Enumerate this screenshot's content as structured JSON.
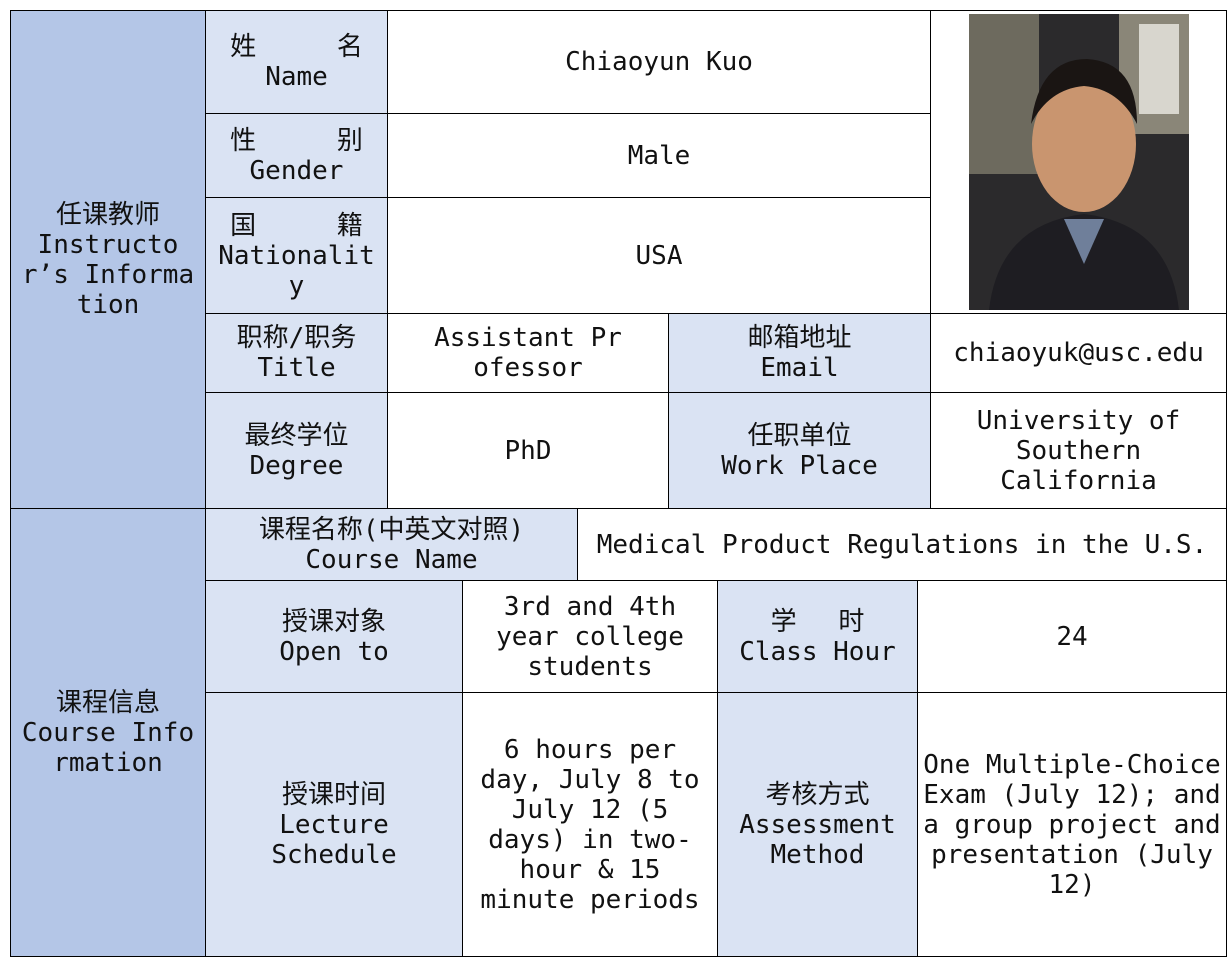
{
  "instructor": {
    "section": {
      "zh": "任课教师",
      "en": "Instructor’s Information"
    },
    "name": {
      "label_zh": "姓 名",
      "label_en": "Name",
      "value": "Chiaoyun Kuo"
    },
    "gender": {
      "label_zh": "性 别",
      "label_en": "Gender",
      "value": "Male"
    },
    "nationality": {
      "label_zh": "国 籍",
      "label_en": "Nationality",
      "value": "USA"
    },
    "title": {
      "label_zh": "职称/职务",
      "label_en": "Title",
      "value": "Assistant Professor"
    },
    "email": {
      "label_zh": "邮箱地址",
      "label_en": "Email",
      "value": "chiaoyuk@usc.edu"
    },
    "degree": {
      "label_zh": "最终学位",
      "label_en": "Degree",
      "value": "PhD"
    },
    "work_place": {
      "label_zh": "任职单位",
      "label_en": "Work Place",
      "value": "University of Southern California"
    }
  },
  "course": {
    "section": {
      "zh": "课程信息",
      "en": "Course Information"
    },
    "course_name": {
      "label_zh": "课程名称(中英文对照)",
      "label_en": "Course Name",
      "value": "Medical Product Regulations in the U.S."
    },
    "open_to": {
      "label_zh": "授课对象",
      "label_en": "Open to",
      "value": "3rd and 4th year college students"
    },
    "class_hour": {
      "label_zh": "学 时",
      "label_en": "Class Hour",
      "value": "24"
    },
    "schedule": {
      "label_zh": "授课时间",
      "label_en": "Lecture Schedule",
      "value": "6 hours per day, July 8 to July 12 (5 days) in two-hour & 15 minute periods"
    },
    "assessment": {
      "label_zh": "考核方式",
      "label_en": "Assessment Method",
      "value": "One Multiple-Choice Exam (July 12); and a group project and presentation (July 12)"
    }
  }
}
